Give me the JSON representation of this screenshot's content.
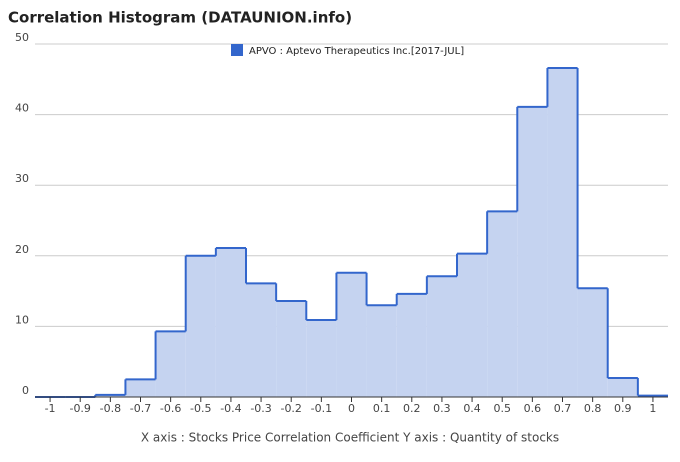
{
  "chart_data": {
    "type": "histogram",
    "title": "Correlation Histogram (DATAUNION.info)",
    "series": [
      {
        "name": "APVO : Aptevo Therapeutics Inc.[2017-JUL]",
        "color": "#3366cc",
        "values": [
          0,
          0,
          0.3,
          2.5,
          9.3,
          20,
          21.1,
          16.1,
          13.6,
          10.9,
          17.6,
          13,
          14.6,
          17.1,
          20.3,
          26.3,
          41.1,
          46.6,
          15.4,
          2.7,
          0.2
        ]
      }
    ],
    "bins": [
      -1.05,
      -0.95,
      -0.85,
      -0.75,
      -0.65,
      -0.55,
      -0.45,
      -0.35,
      -0.25,
      -0.15,
      -0.05,
      0.05,
      0.15,
      0.25,
      0.35,
      0.45,
      0.55,
      0.65,
      0.75,
      0.85,
      0.95,
      1.05
    ],
    "xlim": [
      -1.05,
      1.05
    ],
    "xticks": [
      -1,
      -0.9,
      -0.8,
      -0.7,
      -0.6,
      -0.5,
      -0.4,
      -0.3,
      -0.2,
      -0.1,
      0,
      0.1,
      0.2,
      0.3,
      0.4,
      0.5,
      0.6,
      0.7,
      0.8,
      0.9,
      1
    ],
    "ylim": [
      0,
      50
    ],
    "yticks": [
      0,
      10,
      20,
      30,
      40,
      50
    ],
    "grid": true,
    "x_label": "X axis : Stocks Price Correlation Coefficient  Y axis : Quantity of stocks"
  }
}
